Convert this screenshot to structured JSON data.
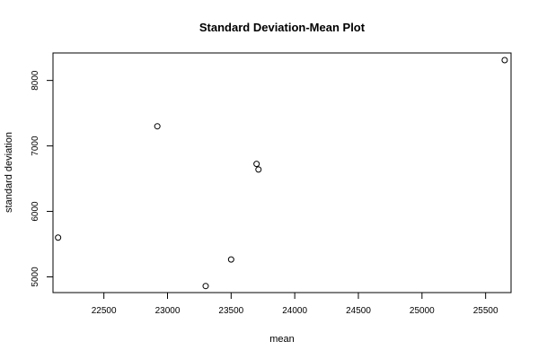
{
  "chart_data": {
    "type": "scatter",
    "title": "Standard Deviation-Mean Plot",
    "xlabel": "mean",
    "ylabel": "standard deviation",
    "xlim": [
      22100,
      25700
    ],
    "ylim": [
      4760,
      8420
    ],
    "xticks": [
      22500,
      23000,
      23500,
      24000,
      24500,
      25000,
      25500
    ],
    "yticks": [
      5000,
      6000,
      7000,
      8000
    ],
    "grid": false,
    "legend": "none",
    "points": [
      {
        "x": 22140,
        "y": 5600
      },
      {
        "x": 22920,
        "y": 7300
      },
      {
        "x": 23300,
        "y": 4860
      },
      {
        "x": 23500,
        "y": 5265
      },
      {
        "x": 23700,
        "y": 6725
      },
      {
        "x": 23715,
        "y": 6640
      },
      {
        "x": 25650,
        "y": 8310
      }
    ]
  }
}
